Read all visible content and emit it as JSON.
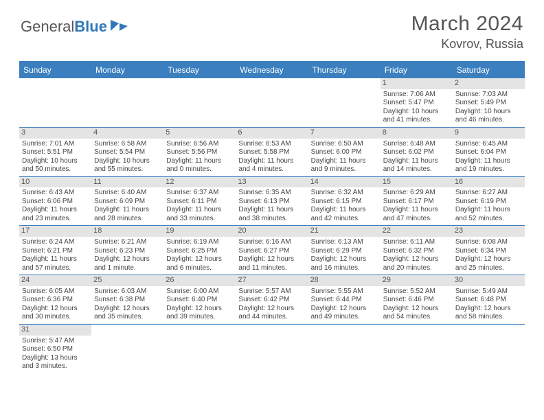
{
  "logo": {
    "text1": "General",
    "text2": "Blue"
  },
  "title": "March 2024",
  "location": "Kovrov, Russia",
  "weekdays": [
    "Sunday",
    "Monday",
    "Tuesday",
    "Wednesday",
    "Thursday",
    "Friday",
    "Saturday"
  ],
  "colors": {
    "header_bg": "#3b7fbf",
    "daynum_bg": "#e4e4e4",
    "text": "#444"
  },
  "weeks": [
    [
      null,
      null,
      null,
      null,
      null,
      {
        "n": "1",
        "sr": "Sunrise: 7:06 AM",
        "ss": "Sunset: 5:47 PM",
        "d1": "Daylight: 10 hours",
        "d2": "and 41 minutes."
      },
      {
        "n": "2",
        "sr": "Sunrise: 7:03 AM",
        "ss": "Sunset: 5:49 PM",
        "d1": "Daylight: 10 hours",
        "d2": "and 46 minutes."
      }
    ],
    [
      {
        "n": "3",
        "sr": "Sunrise: 7:01 AM",
        "ss": "Sunset: 5:51 PM",
        "d1": "Daylight: 10 hours",
        "d2": "and 50 minutes."
      },
      {
        "n": "4",
        "sr": "Sunrise: 6:58 AM",
        "ss": "Sunset: 5:54 PM",
        "d1": "Daylight: 10 hours",
        "d2": "and 55 minutes."
      },
      {
        "n": "5",
        "sr": "Sunrise: 6:56 AM",
        "ss": "Sunset: 5:56 PM",
        "d1": "Daylight: 11 hours",
        "d2": "and 0 minutes."
      },
      {
        "n": "6",
        "sr": "Sunrise: 6:53 AM",
        "ss": "Sunset: 5:58 PM",
        "d1": "Daylight: 11 hours",
        "d2": "and 4 minutes."
      },
      {
        "n": "7",
        "sr": "Sunrise: 6:50 AM",
        "ss": "Sunset: 6:00 PM",
        "d1": "Daylight: 11 hours",
        "d2": "and 9 minutes."
      },
      {
        "n": "8",
        "sr": "Sunrise: 6:48 AM",
        "ss": "Sunset: 6:02 PM",
        "d1": "Daylight: 11 hours",
        "d2": "and 14 minutes."
      },
      {
        "n": "9",
        "sr": "Sunrise: 6:45 AM",
        "ss": "Sunset: 6:04 PM",
        "d1": "Daylight: 11 hours",
        "d2": "and 19 minutes."
      }
    ],
    [
      {
        "n": "10",
        "sr": "Sunrise: 6:43 AM",
        "ss": "Sunset: 6:06 PM",
        "d1": "Daylight: 11 hours",
        "d2": "and 23 minutes."
      },
      {
        "n": "11",
        "sr": "Sunrise: 6:40 AM",
        "ss": "Sunset: 6:09 PM",
        "d1": "Daylight: 11 hours",
        "d2": "and 28 minutes."
      },
      {
        "n": "12",
        "sr": "Sunrise: 6:37 AM",
        "ss": "Sunset: 6:11 PM",
        "d1": "Daylight: 11 hours",
        "d2": "and 33 minutes."
      },
      {
        "n": "13",
        "sr": "Sunrise: 6:35 AM",
        "ss": "Sunset: 6:13 PM",
        "d1": "Daylight: 11 hours",
        "d2": "and 38 minutes."
      },
      {
        "n": "14",
        "sr": "Sunrise: 6:32 AM",
        "ss": "Sunset: 6:15 PM",
        "d1": "Daylight: 11 hours",
        "d2": "and 42 minutes."
      },
      {
        "n": "15",
        "sr": "Sunrise: 6:29 AM",
        "ss": "Sunset: 6:17 PM",
        "d1": "Daylight: 11 hours",
        "d2": "and 47 minutes."
      },
      {
        "n": "16",
        "sr": "Sunrise: 6:27 AM",
        "ss": "Sunset: 6:19 PM",
        "d1": "Daylight: 11 hours",
        "d2": "and 52 minutes."
      }
    ],
    [
      {
        "n": "17",
        "sr": "Sunrise: 6:24 AM",
        "ss": "Sunset: 6:21 PM",
        "d1": "Daylight: 11 hours",
        "d2": "and 57 minutes."
      },
      {
        "n": "18",
        "sr": "Sunrise: 6:21 AM",
        "ss": "Sunset: 6:23 PM",
        "d1": "Daylight: 12 hours",
        "d2": "and 1 minute."
      },
      {
        "n": "19",
        "sr": "Sunrise: 6:19 AM",
        "ss": "Sunset: 6:25 PM",
        "d1": "Daylight: 12 hours",
        "d2": "and 6 minutes."
      },
      {
        "n": "20",
        "sr": "Sunrise: 6:16 AM",
        "ss": "Sunset: 6:27 PM",
        "d1": "Daylight: 12 hours",
        "d2": "and 11 minutes."
      },
      {
        "n": "21",
        "sr": "Sunrise: 6:13 AM",
        "ss": "Sunset: 6:29 PM",
        "d1": "Daylight: 12 hours",
        "d2": "and 16 minutes."
      },
      {
        "n": "22",
        "sr": "Sunrise: 6:11 AM",
        "ss": "Sunset: 6:32 PM",
        "d1": "Daylight: 12 hours",
        "d2": "and 20 minutes."
      },
      {
        "n": "23",
        "sr": "Sunrise: 6:08 AM",
        "ss": "Sunset: 6:34 PM",
        "d1": "Daylight: 12 hours",
        "d2": "and 25 minutes."
      }
    ],
    [
      {
        "n": "24",
        "sr": "Sunrise: 6:05 AM",
        "ss": "Sunset: 6:36 PM",
        "d1": "Daylight: 12 hours",
        "d2": "and 30 minutes."
      },
      {
        "n": "25",
        "sr": "Sunrise: 6:03 AM",
        "ss": "Sunset: 6:38 PM",
        "d1": "Daylight: 12 hours",
        "d2": "and 35 minutes."
      },
      {
        "n": "26",
        "sr": "Sunrise: 6:00 AM",
        "ss": "Sunset: 6:40 PM",
        "d1": "Daylight: 12 hours",
        "d2": "and 39 minutes."
      },
      {
        "n": "27",
        "sr": "Sunrise: 5:57 AM",
        "ss": "Sunset: 6:42 PM",
        "d1": "Daylight: 12 hours",
        "d2": "and 44 minutes."
      },
      {
        "n": "28",
        "sr": "Sunrise: 5:55 AM",
        "ss": "Sunset: 6:44 PM",
        "d1": "Daylight: 12 hours",
        "d2": "and 49 minutes."
      },
      {
        "n": "29",
        "sr": "Sunrise: 5:52 AM",
        "ss": "Sunset: 6:46 PM",
        "d1": "Daylight: 12 hours",
        "d2": "and 54 minutes."
      },
      {
        "n": "30",
        "sr": "Sunrise: 5:49 AM",
        "ss": "Sunset: 6:48 PM",
        "d1": "Daylight: 12 hours",
        "d2": "and 58 minutes."
      }
    ],
    [
      {
        "n": "31",
        "sr": "Sunrise: 5:47 AM",
        "ss": "Sunset: 6:50 PM",
        "d1": "Daylight: 13 hours",
        "d2": "and 3 minutes."
      },
      null,
      null,
      null,
      null,
      null,
      null
    ]
  ]
}
